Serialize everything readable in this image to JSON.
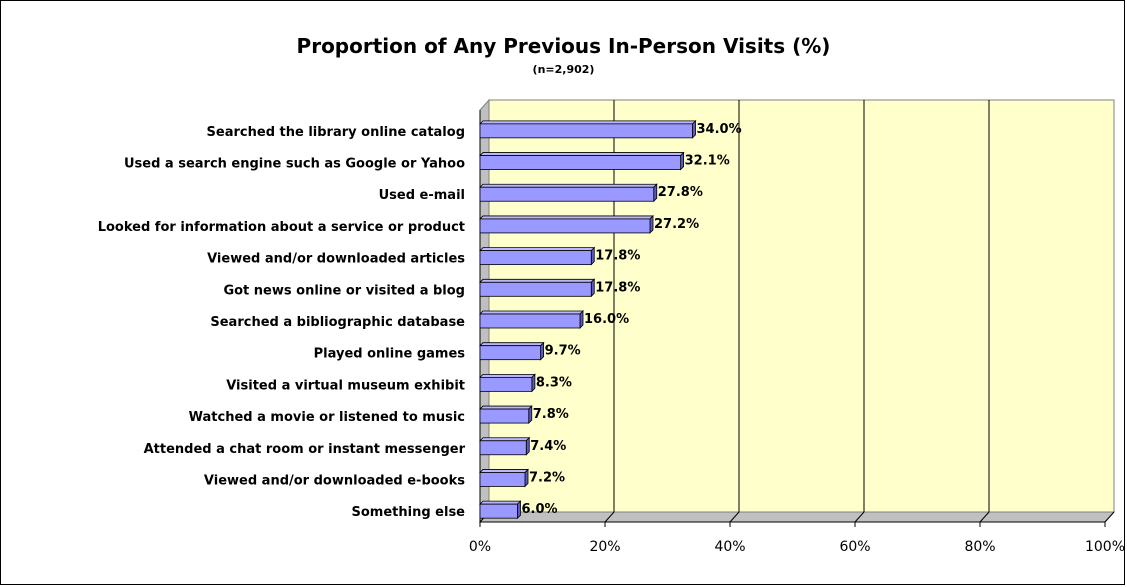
{
  "chart_data": {
    "type": "bar",
    "orientation": "horizontal",
    "title": "Proportion of Any Previous In-Person Visits (%)",
    "subtitle": "(n=2,902)",
    "categories": [
      "Searched the library online catalog",
      "Used a search engine such as Google or Yahoo",
      "Used e-mail",
      "Looked for information about a service or product",
      "Viewed and/or downloaded articles",
      "Got news online or visited a blog",
      "Searched a bibliographic database",
      "Played online games",
      "Visited a virtual museum exhibit",
      "Watched a movie or listened to music",
      "Attended a chat room or instant messenger",
      "Viewed and/or downloaded e-books",
      "Something else"
    ],
    "values": [
      34.0,
      32.1,
      27.8,
      27.2,
      17.8,
      17.8,
      16.0,
      9.7,
      8.3,
      7.8,
      7.4,
      7.2,
      6.0
    ],
    "value_labels": [
      "34.0%",
      "32.1%",
      "27.8%",
      "27.2%",
      "17.8%",
      "17.8%",
      "16.0%",
      "9.7%",
      "8.3%",
      "7.8%",
      "7.4%",
      "7.2%",
      "6.0%"
    ],
    "xlim": [
      0,
      100
    ],
    "xticks": [
      0,
      20,
      40,
      60,
      80,
      100
    ],
    "xtick_labels": [
      "0%",
      "20%",
      "40%",
      "60%",
      "80%",
      "100%"
    ],
    "grid": true,
    "colors": {
      "bar_face": "#9999ff",
      "bar_top": "#b8b8ff",
      "bar_side": "#5c5cc0",
      "plot_bg": "#ffffcc",
      "gridline": "#000000"
    }
  }
}
